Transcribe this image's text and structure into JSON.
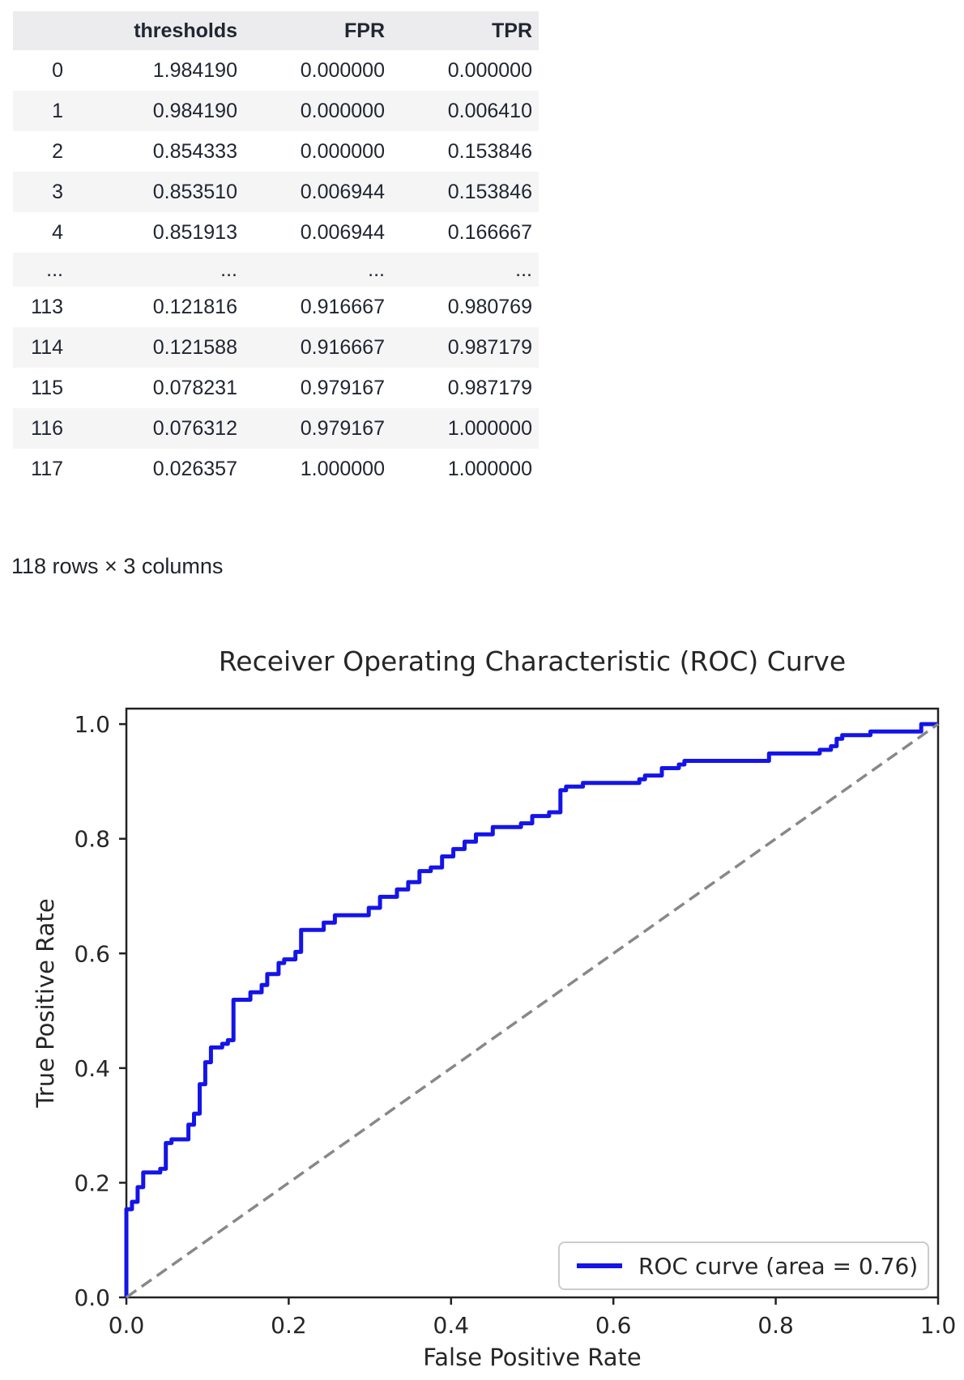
{
  "table": {
    "columns": [
      "",
      "thresholds",
      "FPR",
      "TPR"
    ],
    "rows": [
      [
        "0",
        "1.984190",
        "0.000000",
        "0.000000"
      ],
      [
        "1",
        "0.984190",
        "0.000000",
        "0.006410"
      ],
      [
        "2",
        "0.854333",
        "0.000000",
        "0.153846"
      ],
      [
        "3",
        "0.853510",
        "0.006944",
        "0.153846"
      ],
      [
        "4",
        "0.851913",
        "0.006944",
        "0.166667"
      ],
      [
        "...",
        "...",
        "...",
        "..."
      ],
      [
        "113",
        "0.121816",
        "0.916667",
        "0.980769"
      ],
      [
        "114",
        "0.121588",
        "0.916667",
        "0.987179"
      ],
      [
        "115",
        "0.078231",
        "0.979167",
        "0.987179"
      ],
      [
        "116",
        "0.076312",
        "0.979167",
        "1.000000"
      ],
      [
        "117",
        "0.026357",
        "1.000000",
        "1.000000"
      ]
    ],
    "caption": "118 rows × 3 columns"
  },
  "chart_data": {
    "type": "line",
    "title": "Receiver Operating Characteristic (ROC) Curve",
    "xlabel": "False Positive Rate",
    "ylabel": "True Positive Rate",
    "xticks": [
      0.0,
      0.2,
      0.4,
      0.6,
      0.8,
      1.0
    ],
    "yticks": [
      0.0,
      0.2,
      0.4,
      0.6,
      0.8,
      1.0
    ],
    "xlim": [
      0,
      1
    ],
    "ylim": [
      0,
      1.027
    ],
    "grid": false,
    "legend": {
      "position": "lower right",
      "entries": [
        {
          "label": "ROC curve (area = 0.76)",
          "color": "#1414e8",
          "style": "solid"
        }
      ]
    },
    "auc": 0.76,
    "series": [
      {
        "name": "ROC curve (area = 0.76)",
        "style": "solid",
        "color": "#1414e8",
        "linewidth": 5,
        "points": [
          [
            0,
            0
          ],
          [
            0,
            0.1538
          ],
          [
            0.0069,
            0.1538
          ],
          [
            0.0069,
            0.1667
          ],
          [
            0.0139,
            0.1667
          ],
          [
            0.0139,
            0.1923
          ],
          [
            0.0208,
            0.1923
          ],
          [
            0.0208,
            0.2179
          ],
          [
            0.0417,
            0.2179
          ],
          [
            0.0417,
            0.2244
          ],
          [
            0.0486,
            0.2244
          ],
          [
            0.0486,
            0.2692
          ],
          [
            0.0556,
            0.2692
          ],
          [
            0.0556,
            0.2756
          ],
          [
            0.0764,
            0.2756
          ],
          [
            0.0764,
            0.3013
          ],
          [
            0.0833,
            0.3013
          ],
          [
            0.0833,
            0.3205
          ],
          [
            0.0903,
            0.3205
          ],
          [
            0.0903,
            0.3718
          ],
          [
            0.0972,
            0.3718
          ],
          [
            0.0972,
            0.4103
          ],
          [
            0.1042,
            0.4103
          ],
          [
            0.1042,
            0.4359
          ],
          [
            0.1181,
            0.4359
          ],
          [
            0.1181,
            0.4423
          ],
          [
            0.125,
            0.4423
          ],
          [
            0.125,
            0.4487
          ],
          [
            0.1319,
            0.4487
          ],
          [
            0.1319,
            0.5192
          ],
          [
            0.1528,
            0.5192
          ],
          [
            0.1528,
            0.5321
          ],
          [
            0.1667,
            0.5321
          ],
          [
            0.1667,
            0.5449
          ],
          [
            0.1736,
            0.5449
          ],
          [
            0.1736,
            0.5641
          ],
          [
            0.1875,
            0.5641
          ],
          [
            0.1875,
            0.5833
          ],
          [
            0.1944,
            0.5833
          ],
          [
            0.1944,
            0.5897
          ],
          [
            0.2083,
            0.5897
          ],
          [
            0.2083,
            0.6026
          ],
          [
            0.2153,
            0.6026
          ],
          [
            0.2153,
            0.641
          ],
          [
            0.2431,
            0.641
          ],
          [
            0.2431,
            0.6538
          ],
          [
            0.2569,
            0.6538
          ],
          [
            0.2569,
            0.6667
          ],
          [
            0.2986,
            0.6667
          ],
          [
            0.2986,
            0.6795
          ],
          [
            0.3125,
            0.6795
          ],
          [
            0.3125,
            0.6987
          ],
          [
            0.3333,
            0.6987
          ],
          [
            0.3333,
            0.7115
          ],
          [
            0.3472,
            0.7115
          ],
          [
            0.3472,
            0.7244
          ],
          [
            0.3611,
            0.7244
          ],
          [
            0.3611,
            0.7436
          ],
          [
            0.375,
            0.7436
          ],
          [
            0.375,
            0.75
          ],
          [
            0.3889,
            0.75
          ],
          [
            0.3889,
            0.7692
          ],
          [
            0.4028,
            0.7692
          ],
          [
            0.4028,
            0.7821
          ],
          [
            0.4167,
            0.7821
          ],
          [
            0.4167,
            0.7949
          ],
          [
            0.4306,
            0.7949
          ],
          [
            0.4306,
            0.8077
          ],
          [
            0.4514,
            0.8077
          ],
          [
            0.4514,
            0.8205
          ],
          [
            0.4861,
            0.8205
          ],
          [
            0.4861,
            0.8269
          ],
          [
            0.5,
            0.8269
          ],
          [
            0.5,
            0.8397
          ],
          [
            0.5208,
            0.8397
          ],
          [
            0.5208,
            0.8462
          ],
          [
            0.5347,
            0.8462
          ],
          [
            0.5347,
            0.8846
          ],
          [
            0.5417,
            0.8846
          ],
          [
            0.5417,
            0.891
          ],
          [
            0.5625,
            0.891
          ],
          [
            0.5625,
            0.8974
          ],
          [
            0.6319,
            0.8974
          ],
          [
            0.6319,
            0.9038
          ],
          [
            0.6389,
            0.9038
          ],
          [
            0.6389,
            0.9103
          ],
          [
            0.6597,
            0.9103
          ],
          [
            0.6597,
            0.9231
          ],
          [
            0.6806,
            0.9231
          ],
          [
            0.6806,
            0.9295
          ],
          [
            0.6875,
            0.9295
          ],
          [
            0.6875,
            0.9359
          ],
          [
            0.7917,
            0.9359
          ],
          [
            0.7917,
            0.9487
          ],
          [
            0.8542,
            0.9487
          ],
          [
            0.8542,
            0.9551
          ],
          [
            0.8681,
            0.9551
          ],
          [
            0.8681,
            0.9615
          ],
          [
            0.875,
            0.9615
          ],
          [
            0.875,
            0.9744
          ],
          [
            0.8819,
            0.9744
          ],
          [
            0.8819,
            0.9808
          ],
          [
            0.9167,
            0.9808
          ],
          [
            0.9167,
            0.9872
          ],
          [
            0.9792,
            0.9872
          ],
          [
            0.9792,
            1.0
          ],
          [
            1.0,
            1.0
          ]
        ]
      },
      {
        "name": "chance-diagonal",
        "style": "dashed",
        "color": "#888888",
        "linewidth": 3.5,
        "points": [
          [
            0,
            0
          ],
          [
            1,
            1
          ]
        ]
      }
    ]
  }
}
